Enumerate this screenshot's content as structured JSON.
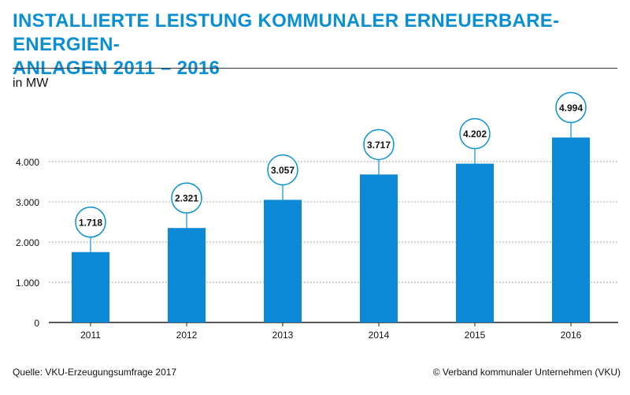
{
  "header": {
    "title_line1": "INSTALLIERTE LEISTUNG KOMMUNALER ERNEUERBARE-ENERGIEN-",
    "title_line2": "ANLAGEN 2011 – 2016"
  },
  "footer": {
    "source": "Quelle: VKU-Erzeugungsumfrage 2017",
    "copyright": "© Verband kommunaler Unternehmen (VKU)"
  },
  "colors": {
    "accent": "#0a8fd4",
    "bar": "#0b89d6",
    "grid": "#888888",
    "text": "#111111"
  },
  "chart_data": {
    "type": "bar",
    "title": "INSTALLIERTE LEISTUNG KOMMUNALER ERNEUERBARE-ENERGIEN-ANLAGEN 2011 – 2016",
    "unit_label": "in MW",
    "xlabel": "",
    "ylabel": "in MW",
    "categories": [
      "2011",
      "2012",
      "2013",
      "2014",
      "2015",
      "2016"
    ],
    "values": [
      1718,
      2321,
      3057,
      3717,
      4202,
      4994
    ],
    "value_labels": [
      "1.718",
      "2.321",
      "3.057",
      "3.717",
      "4.202",
      "4.994"
    ],
    "bar_heights_estimated": [
      1750,
      2350,
      3050,
      3680,
      3950,
      4600
    ],
    "yticks": [
      0,
      1000,
      2000,
      3000,
      4000
    ],
    "ytick_labels": [
      "0",
      "1.000",
      "2.000",
      "3.000",
      "4.000"
    ],
    "ylim": [
      0,
      5000
    ],
    "grid": true,
    "grid_style": "dotted"
  }
}
